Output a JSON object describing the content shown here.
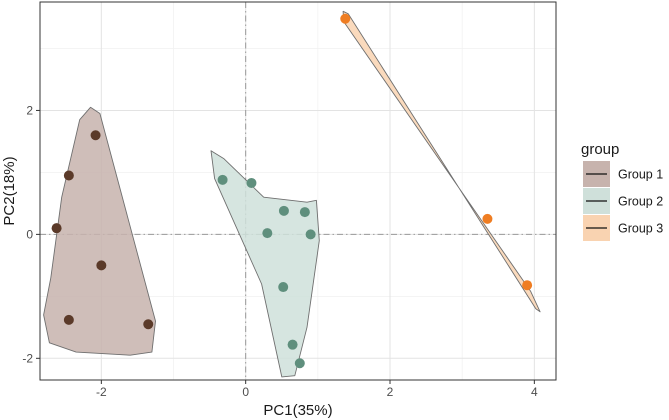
{
  "chart_data": {
    "type": "scatter",
    "title": "",
    "xlabel": "PC1(35%)",
    "ylabel": "PC2(18%)",
    "xlim": [
      -2.85,
      4.3
    ],
    "ylim": [
      -2.35,
      3.75
    ],
    "xticks": [
      -2,
      0,
      2,
      4
    ],
    "yticks": [
      -2,
      0,
      2
    ],
    "xtick_labels": [
      "-2",
      "0",
      "2",
      "4"
    ],
    "ytick_labels": [
      "-2",
      "0",
      "2"
    ],
    "grid": true,
    "reference_lines": {
      "x": 0,
      "y": 0
    },
    "legend": {
      "title": "group",
      "position": "right"
    },
    "series": [
      {
        "name": "Group 1",
        "point_color": "#5b3a29",
        "fill_color": "#c7b3ad",
        "points": [
          {
            "x": -2.62,
            "y": 0.1
          },
          {
            "x": -2.45,
            "y": 0.95
          },
          {
            "x": -2.08,
            "y": 1.6
          },
          {
            "x": -2.0,
            "y": -0.5
          },
          {
            "x": -2.45,
            "y": -1.38
          },
          {
            "x": -1.35,
            "y": -1.45
          }
        ]
      },
      {
        "name": "Group 2",
        "point_color": "#5f8f7d",
        "fill_color": "#cfe0da",
        "points": [
          {
            "x": -0.32,
            "y": 0.88
          },
          {
            "x": 0.08,
            "y": 0.83
          },
          {
            "x": 0.53,
            "y": 0.38
          },
          {
            "x": 0.82,
            "y": 0.36
          },
          {
            "x": 0.3,
            "y": 0.02
          },
          {
            "x": 0.9,
            "y": 0.0
          },
          {
            "x": 0.52,
            "y": -0.85
          },
          {
            "x": 0.65,
            "y": -1.78
          },
          {
            "x": 0.75,
            "y": -2.08
          }
        ]
      },
      {
        "name": "Group 3",
        "point_color": "#ef7d22",
        "fill_color": "#f9d3b1",
        "points": [
          {
            "x": 1.38,
            "y": 3.48
          },
          {
            "x": 3.35,
            "y": 0.25
          },
          {
            "x": 3.9,
            "y": -0.82
          }
        ]
      }
    ],
    "hull_paths": [
      [
        [
          -2.8,
          -1.3
        ],
        [
          -2.7,
          -0.7
        ],
        [
          -2.55,
          0.6
        ],
        [
          -2.3,
          1.85
        ],
        [
          -2.15,
          2.05
        ],
        [
          -2.02,
          1.95
        ],
        [
          -1.25,
          -1.4
        ],
        [
          -1.3,
          -1.9
        ],
        [
          -1.6,
          -1.95
        ],
        [
          -2.35,
          -1.9
        ],
        [
          -2.72,
          -1.75
        ]
      ],
      [
        [
          -0.48,
          1.35
        ],
        [
          -0.43,
          0.9
        ],
        [
          0.22,
          -0.8
        ],
        [
          0.5,
          -2.3
        ],
        [
          0.68,
          -2.28
        ],
        [
          0.85,
          -1.5
        ],
        [
          1.02,
          -0.1
        ],
        [
          0.98,
          0.55
        ],
        [
          0.85,
          0.52
        ],
        [
          0.25,
          0.6
        ],
        [
          -0.3,
          1.22
        ]
      ],
      [
        [
          1.35,
          3.6
        ],
        [
          1.36,
          3.43
        ],
        [
          3.95,
          -0.92
        ],
        [
          4.08,
          -1.25
        ],
        [
          4.02,
          -1.2
        ],
        [
          1.42,
          3.56
        ]
      ]
    ]
  }
}
